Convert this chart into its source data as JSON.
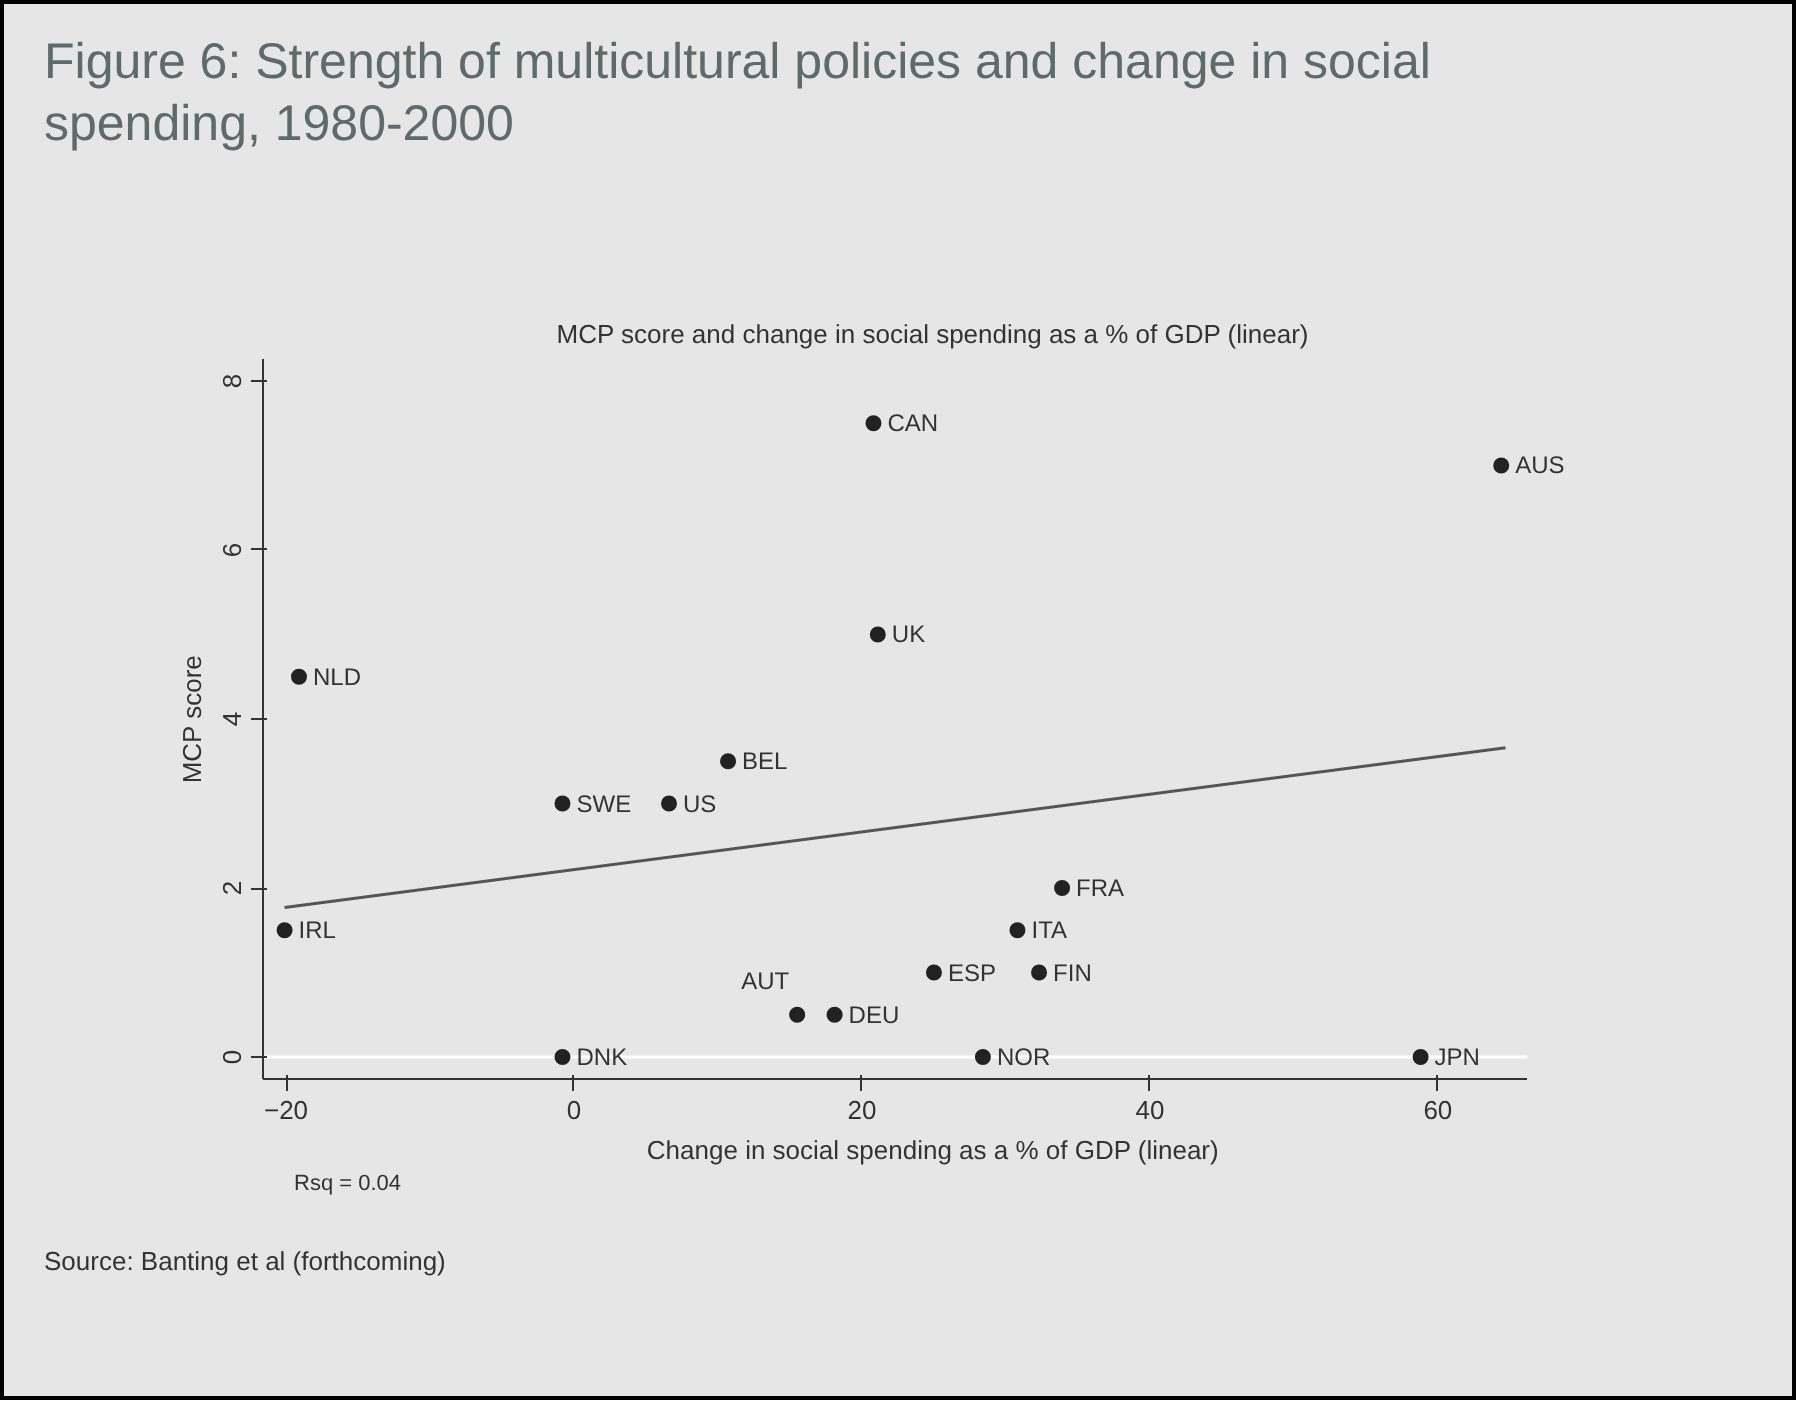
{
  "chart_data": {
    "type": "scatter",
    "title": "Figure 6: Strength of multicultural policies and change in social spending, 1980-2000",
    "subtitle": "MCP score and change in social spending as a % of GDP (linear)",
    "xlabel": "Change in social spending as a % of GDP (linear)",
    "ylabel": "MCP score",
    "annotations": [
      "Rsq = 0.04",
      "Source:  Banting et al (forthcoming)"
    ],
    "series": [
      {
        "marker": "circle",
        "color": "#222222",
        "x": [
          20.8,
          64.4,
          21.1,
          -19.1,
          10.7,
          -0.8,
          6.6,
          33.9,
          -20.1,
          30.8,
          25.0,
          32.3,
          15.5,
          18.1,
          -0.8,
          28.4,
          58.8
        ],
        "values": [
          7.5,
          7,
          5,
          4.5,
          3.5,
          3,
          3,
          2,
          1.5,
          1.5,
          1,
          1,
          0.5,
          0.5,
          0,
          0,
          0
        ],
        "value_labels": [
          "CAN",
          "AUS",
          "UK",
          "NLD",
          "BEL",
          "SWE",
          "US",
          "FRA",
          "IRL",
          "ITA",
          "ESP",
          "FIN",
          "AUT",
          "DEU",
          "DNK",
          "NOR",
          "JPN"
        ]
      },
      {
        "type": "line",
        "color": "#555555",
        "x": [
          -20.1,
          64.7
        ],
        "values": [
          1.77,
          3.66
        ]
      }
    ],
    "xlim": [
      -21.6,
      66.2
    ],
    "ylim": [
      -0.26,
      8.26
    ],
    "xticks": [
      -20,
      0,
      20,
      40,
      60
    ],
    "yticks": [
      0,
      2,
      4,
      6,
      8
    ],
    "ref_lines": [
      {
        "axis": "y",
        "value": 0,
        "color": "#ffffff"
      }
    ],
    "grid": false,
    "line_style": "solid"
  }
}
